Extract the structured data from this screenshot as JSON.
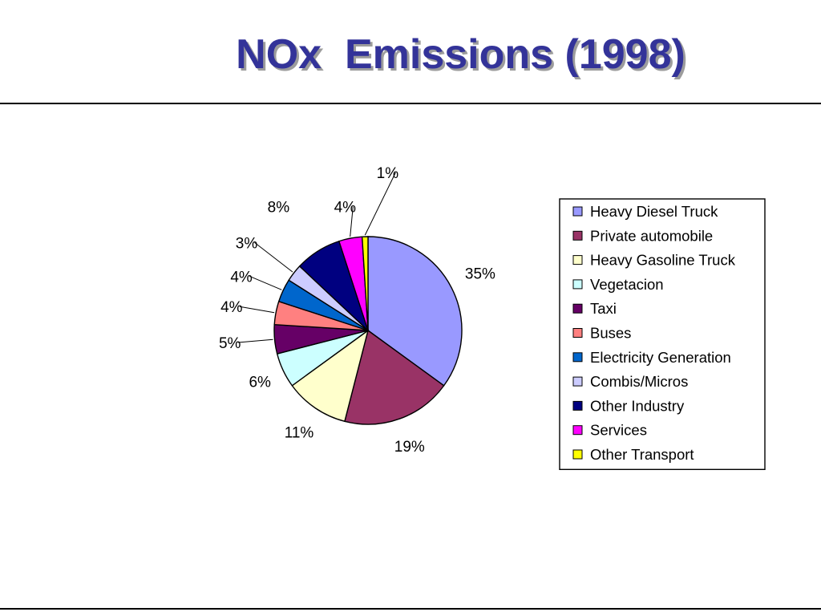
{
  "title": "NOx  Emissions (1998)",
  "chart_data": {
    "type": "pie",
    "title": "NOx  Emissions (1998)",
    "unit": "%",
    "legend_position": "right",
    "slices": [
      {
        "name": "Heavy Diesel Truck",
        "value": 35,
        "label": "35%",
        "color": "#9999ff"
      },
      {
        "name": "Private automobile",
        "value": 19,
        "label": "19%",
        "color": "#993366"
      },
      {
        "name": "Heavy Gasoline Truck",
        "value": 11,
        "label": "11%",
        "color": "#ffffcc"
      },
      {
        "name": "Vegetacion",
        "value": 6,
        "label": "6%",
        "color": "#ccffff"
      },
      {
        "name": "Taxi",
        "value": 5,
        "label": "5%",
        "color": "#660066"
      },
      {
        "name": "Buses",
        "value": 4,
        "label": "4%",
        "color": "#ff8080"
      },
      {
        "name": "Electricity Generation",
        "value": 4,
        "label": "4%",
        "color": "#0066cc"
      },
      {
        "name": "Combis/Micros",
        "value": 3,
        "label": "3%",
        "color": "#ccccff"
      },
      {
        "name": "Other Industry",
        "value": 8,
        "label": "8%",
        "color": "#000080"
      },
      {
        "name": "Services",
        "value": 4,
        "label": "4%",
        "color": "#ff00ff"
      },
      {
        "name": "Other Transport",
        "value": 1,
        "label": "1%",
        "color": "#ffff00"
      }
    ]
  }
}
